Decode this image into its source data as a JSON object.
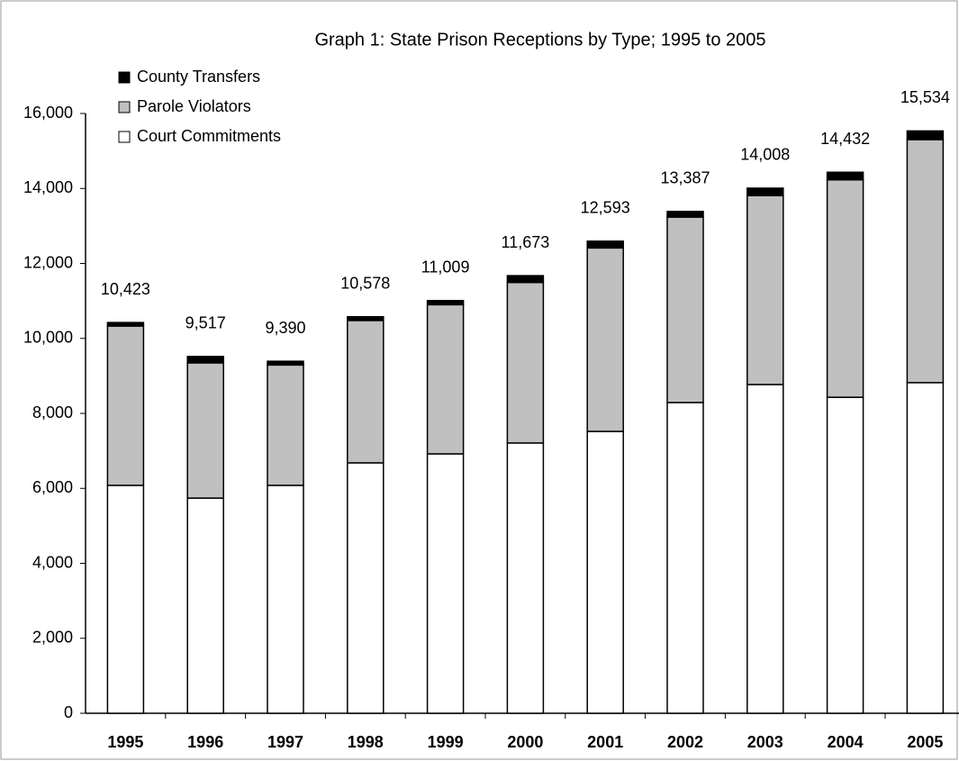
{
  "chart_data": {
    "type": "stacked_bar",
    "title": "Graph 1: State Prison Receptions by Type; 1995 to 2005",
    "categories": [
      "1995",
      "1996",
      "1997",
      "1998",
      "1999",
      "2000",
      "2001",
      "2002",
      "2003",
      "2004",
      "2005"
    ],
    "series": [
      {
        "name": "Court Commitments",
        "color": "#ffffff",
        "values": [
          6080,
          5740,
          6080,
          6680,
          6920,
          7210,
          7520,
          8290,
          8770,
          8430,
          8820
        ]
      },
      {
        "name": "Parole Violators",
        "color": "#c0c0c0",
        "values": [
          4250,
          3607,
          3210,
          3798,
          3979,
          4283,
          4893,
          4947,
          5038,
          5802,
          6484
        ]
      },
      {
        "name": "County Transfers",
        "color": "#000000",
        "values": [
          93,
          170,
          100,
          100,
          110,
          180,
          180,
          150,
          200,
          200,
          230
        ]
      }
    ],
    "totals": [
      10423,
      9517,
      9390,
      10578,
      11009,
      11673,
      12593,
      13387,
      14008,
      14432,
      15534
    ],
    "total_labels": [
      "10,423",
      "9,517",
      "9,390",
      "10,578",
      "11,009",
      "11,673",
      "12,593",
      "13,387",
      "14,008",
      "14,432",
      "15,534"
    ],
    "ylim": [
      0,
      16000
    ],
    "yticks": [
      0,
      {
        "value": 2000,
        "label": "2,000"
      },
      {
        "value": 4000,
        "label": "4,000"
      },
      {
        "value": 6000,
        "label": "6,000"
      },
      {
        "value": 8000,
        "label": "8,000"
      },
      {
        "value": 10000,
        "label": "10,000"
      },
      {
        "value": 12000,
        "label": "12,000"
      },
      {
        "value": 14000,
        "label": "14,000"
      },
      {
        "value": 16000,
        "label": "16,000"
      }
    ],
    "grid": false
  }
}
